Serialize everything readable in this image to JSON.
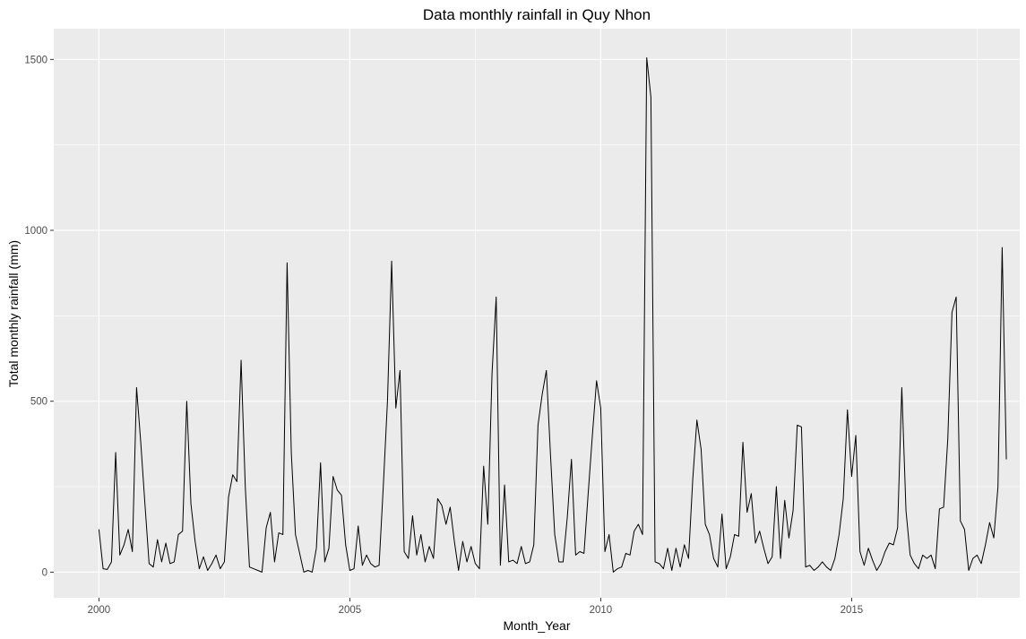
{
  "chart_data": {
    "type": "line",
    "title": "Data monthly rainfall in Quy Nhon",
    "xlabel": "Month_Year",
    "ylabel": "Total monthly rainfall (mm)",
    "x_ticks": [
      {
        "value": 2000,
        "label": "2000"
      },
      {
        "value": 2005,
        "label": "2005"
      },
      {
        "value": 2010,
        "label": "2010"
      },
      {
        "value": 2015,
        "label": "2015"
      }
    ],
    "y_ticks": [
      {
        "value": 0,
        "label": "0"
      },
      {
        "value": 500,
        "label": "500"
      },
      {
        "value": 1000,
        "label": "1000"
      },
      {
        "value": 1500,
        "label": "1500"
      }
    ],
    "xlim": [
      1999.1,
      2018.35
    ],
    "ylim": [
      -75,
      1590
    ],
    "grid": true,
    "background": "#ebebeb",
    "line_color": "#000000",
    "series": [
      {
        "start": "2000-01",
        "frequency": "monthly",
        "values": [
          125,
          10,
          8,
          30,
          350,
          50,
          80,
          125,
          60,
          540,
          380,
          200,
          25,
          15,
          95,
          30,
          85,
          25,
          30,
          110,
          120,
          500,
          200,
          90,
          10,
          45,
          5,
          25,
          50,
          10,
          30,
          220,
          285,
          265,
          620,
          250,
          15,
          10,
          5,
          0,
          130,
          175,
          30,
          115,
          110,
          905,
          350,
          110,
          55,
          0,
          5,
          0,
          70,
          320,
          30,
          70,
          280,
          240,
          225,
          80,
          5,
          10,
          135,
          20,
          50,
          25,
          15,
          20,
          250,
          500,
          910,
          480,
          590,
          60,
          40,
          165,
          50,
          110,
          30,
          75,
          40,
          215,
          195,
          140,
          190,
          90,
          5,
          90,
          30,
          75,
          25,
          10,
          310,
          140,
          580,
          805,
          20,
          255,
          30,
          35,
          25,
          75,
          25,
          30,
          80,
          430,
          520,
          590,
          340,
          110,
          30,
          30,
          160,
          330,
          50,
          60,
          55,
          230,
          400,
          560,
          480,
          60,
          110,
          0,
          10,
          15,
          55,
          50,
          120,
          140,
          110,
          1505,
          1390,
          30,
          25,
          10,
          70,
          5,
          70,
          15,
          80,
          40,
          270,
          445,
          360,
          140,
          110,
          40,
          15,
          170,
          10,
          45,
          110,
          105,
          380,
          175,
          230,
          85,
          120,
          70,
          25,
          45,
          250,
          40,
          210,
          100,
          180,
          430,
          425,
          15,
          20,
          5,
          15,
          30,
          15,
          5,
          40,
          110,
          215,
          475,
          280,
          400,
          60,
          20,
          70,
          35,
          5,
          25,
          60,
          85,
          80,
          130,
          540,
          180,
          50,
          25,
          10,
          50,
          40,
          50,
          10,
          185,
          190,
          390,
          760,
          805,
          150,
          125,
          5,
          40,
          50,
          25,
          80,
          145,
          100,
          250,
          950,
          330
        ]
      }
    ]
  }
}
